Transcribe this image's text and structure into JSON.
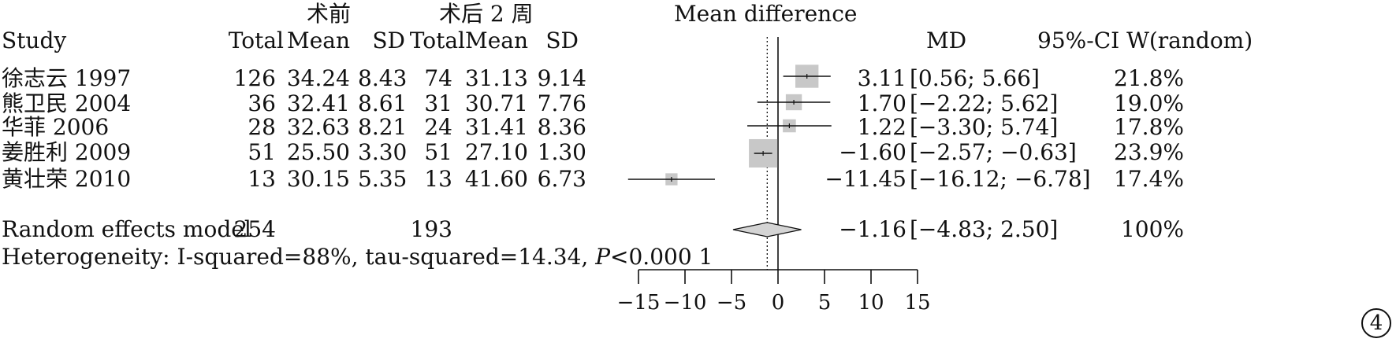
{
  "headers": {
    "group_pre": "术前",
    "group_post": "术后 2 周",
    "mean_difference": "Mean difference",
    "study": "Study",
    "total_pre": "Total",
    "mean_pre": "Mean",
    "sd_pre": "SD",
    "total_post": "Total",
    "mean_post": "Mean",
    "sd_post": "SD",
    "md": "MD",
    "ci_weight": "95%-CI W(random)"
  },
  "studies": [
    {
      "study": "徐志云 1997",
      "total_pre": "126",
      "mean_pre": "34.24",
      "sd_pre": "8.43",
      "total_post": "74",
      "mean_post": "31.13",
      "sd_post": "9.14",
      "md": "3.11",
      "ci": "[0.56; 5.66]",
      "weight": "21.8%"
    },
    {
      "study": "熊卫民 2004",
      "total_pre": "36",
      "mean_pre": "32.41",
      "sd_pre": "8.61",
      "total_post": "31",
      "mean_post": "30.71",
      "sd_post": "7.76",
      "md": "1.70",
      "ci": "[−2.22; 5.62]",
      "weight": "19.0%"
    },
    {
      "study": "华菲 2006",
      "total_pre": "28",
      "mean_pre": "32.63",
      "sd_pre": "8.21",
      "total_post": "24",
      "mean_post": "31.41",
      "sd_post": "8.36",
      "md": "1.22",
      "ci": "[−3.30; 5.74]",
      "weight": "17.8%"
    },
    {
      "study": "姜胜利 2009",
      "total_pre": "51",
      "mean_pre": "25.50",
      "sd_pre": "3.30",
      "total_post": "51",
      "mean_post": "27.10",
      "sd_post": "1.30",
      "md": "−1.60",
      "ci": "[−2.57; −0.63]",
      "weight": "23.9%"
    },
    {
      "study": "黄壮荣 2010",
      "total_pre": "13",
      "mean_pre": "30.15",
      "sd_pre": "5.35",
      "total_post": "13",
      "mean_post": "41.60",
      "sd_post": "6.73",
      "md": "−11.45",
      "ci": "[−16.12; −6.78]",
      "weight": "17.4%"
    }
  ],
  "summary": {
    "label": "Random effects model",
    "total_pre": "254",
    "total_post": "193",
    "md": "−1.16",
    "ci": "[−4.83; 2.50]",
    "weight": "100%"
  },
  "heterogeneity": {
    "text": "Heterogeneity: I-squared=88%, tau-squared=14.34, ",
    "p_label": "P",
    "p_value": "<0.000 1"
  },
  "panel_label": "4",
  "chart_data": {
    "type": "forest",
    "xlim": [
      -15,
      15
    ],
    "xticks": [
      -15,
      -10,
      -5,
      0,
      5,
      10,
      15
    ],
    "tick_labels": [
      "−15",
      "−10",
      "−5",
      "0",
      "5",
      "10",
      "15"
    ],
    "null_line": 0,
    "summary_line": -1.16,
    "points": [
      {
        "md": 3.11,
        "lo": 0.56,
        "hi": 5.66,
        "weight": 21.8
      },
      {
        "md": 1.7,
        "lo": -2.22,
        "hi": 5.62,
        "weight": 19.0
      },
      {
        "md": 1.22,
        "lo": -3.3,
        "hi": 5.74,
        "weight": 17.8
      },
      {
        "md": -1.6,
        "lo": -2.57,
        "hi": -0.63,
        "weight": 23.9
      },
      {
        "md": -11.45,
        "lo": -16.12,
        "hi": -6.78,
        "weight": 17.4
      }
    ],
    "summary": {
      "md": -1.16,
      "lo": -4.83,
      "hi": 2.5
    },
    "marker_color": "#c8c8c8",
    "diamond_color": "#d4d4d4"
  }
}
